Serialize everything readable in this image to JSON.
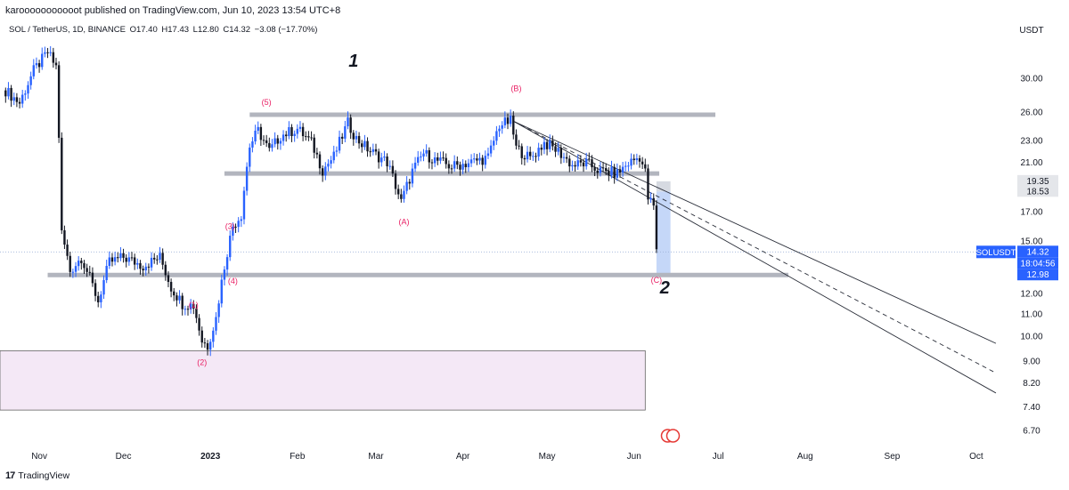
{
  "header": {
    "published": "karooooooooooot published on TradingView.com, Jun 10, 2023 13:54 UTC+8"
  },
  "legend": {
    "symbol": "SOL / TetherUS, 1D, BINANCE",
    "open": "O17.40",
    "high": "H17.43",
    "low": "L12.80",
    "close": "C14.32",
    "change": "−3.08 (−17.70%)"
  },
  "footer": {
    "brand": "TradingView"
  },
  "colors": {
    "up": "#2962ff",
    "down": "#131722",
    "level_line": "#b2b5be",
    "wave_label": "#e91e63",
    "support_zone": "#f3e5f5",
    "projection": "#bbd0f7",
    "price_badge": "#2962ff"
  },
  "chart_data": {
    "type": "candlestick",
    "symbol": "SOLUSDT",
    "exchange": "BINANCE",
    "interval": "1D",
    "y_axis": {
      "unit_label": "USDT",
      "scale": "log",
      "ticks": [
        "30.00",
        "26.00",
        "23.00",
        "21.00",
        "17.00",
        "15.00",
        "12.00",
        "11.00",
        "10.00",
        "9.00",
        "8.20",
        "7.40",
        "6.70"
      ],
      "range": [
        6.3,
        36
      ]
    },
    "x_axis": {
      "ticks": [
        "Nov",
        "Dec",
        "2023",
        "Feb",
        "Mar",
        "Apr",
        "May",
        "Jun",
        "Jul",
        "Aug",
        "Sep",
        "Oct"
      ],
      "range": [
        "2022-10-18",
        "2023-10-15"
      ]
    },
    "price_path": [
      [
        "2022-10-20",
        28.5
      ],
      [
        "2022-10-25",
        27.0
      ],
      [
        "2022-10-30",
        31.0
      ],
      [
        "2022-11-04",
        33.5
      ],
      [
        "2022-11-07",
        31.5
      ],
      [
        "2022-11-09",
        15.5
      ],
      [
        "2022-11-12",
        13.2
      ],
      [
        "2022-11-16",
        14.0
      ],
      [
        "2022-11-22",
        11.6
      ],
      [
        "2022-11-26",
        13.7
      ],
      [
        "2022-12-01",
        14.0
      ],
      [
        "2022-12-08",
        13.5
      ],
      [
        "2022-12-14",
        14.0
      ],
      [
        "2022-12-18",
        12.3
      ],
      [
        "2022-12-22",
        11.5
      ],
      [
        "2022-12-26",
        11.4
      ],
      [
        "2022-12-29",
        9.8
      ],
      [
        "2022-12-31",
        9.6
      ],
      [
        "2023-01-03",
        10.8
      ],
      [
        "2023-01-06",
        13.5
      ],
      [
        "2023-01-09",
        16.0
      ],
      [
        "2023-01-12",
        16.8
      ],
      [
        "2023-01-15",
        22.5
      ],
      [
        "2023-01-18",
        24.0
      ],
      [
        "2023-01-22",
        22.0
      ],
      [
        "2023-01-26",
        23.5
      ],
      [
        "2023-02-01",
        24.2
      ],
      [
        "2023-02-06",
        22.8
      ],
      [
        "2023-02-10",
        20.3
      ],
      [
        "2023-02-14",
        21.5
      ],
      [
        "2023-02-19",
        24.8
      ],
      [
        "2023-02-22",
        23.2
      ],
      [
        "2023-02-27",
        22.0
      ],
      [
        "2023-03-05",
        21.0
      ],
      [
        "2023-03-10",
        17.7
      ],
      [
        "2023-03-14",
        20.2
      ],
      [
        "2023-03-18",
        21.8
      ],
      [
        "2023-03-22",
        21.2
      ],
      [
        "2023-03-28",
        20.6
      ],
      [
        "2023-04-04",
        21.0
      ],
      [
        "2023-04-10",
        21.4
      ],
      [
        "2023-04-14",
        24.6
      ],
      [
        "2023-04-18",
        25.0
      ],
      [
        "2023-04-20",
        22.3
      ],
      [
        "2023-04-25",
        21.3
      ],
      [
        "2023-04-30",
        22.8
      ],
      [
        "2023-05-05",
        22.0
      ],
      [
        "2023-05-10",
        20.7
      ],
      [
        "2023-05-15",
        20.9
      ],
      [
        "2023-05-20",
        20.2
      ],
      [
        "2023-05-26",
        20.0
      ],
      [
        "2023-05-30",
        20.9
      ],
      [
        "2023-06-03",
        21.5
      ],
      [
        "2023-06-05",
        20.1
      ],
      [
        "2023-06-06",
        18.0
      ],
      [
        "2023-06-08",
        17.4
      ],
      [
        "2023-06-09",
        14.32
      ]
    ],
    "horizontal_levels": [
      {
        "price": 25.7,
        "from": "2023-01-15",
        "to": "2023-06-30"
      },
      {
        "price": 20.0,
        "from": "2023-01-06",
        "to": "2023-06-10"
      },
      {
        "price": 12.98,
        "from": "2022-11-04",
        "to": "2023-07-26"
      }
    ],
    "zones": [
      {
        "name": "support-zone",
        "price_top": 9.4,
        "price_bottom": 7.3,
        "from": "2022-10-18",
        "to": "2023-06-05"
      },
      {
        "name": "projection",
        "price_top": 18.53,
        "price_bottom": 12.98,
        "from": "2023-06-09",
        "to": "2023-06-14"
      },
      {
        "name": "projection-top",
        "price_top": 19.35,
        "price_bottom": 18.53,
        "from": "2023-06-09",
        "to": "2023-06-14"
      }
    ],
    "channel": {
      "lines": [
        {
          "style": "solid",
          "from": [
            "2023-04-19",
            25.0
          ],
          "to": [
            "2023-10-08",
            9.7
          ]
        },
        {
          "style": "solid",
          "from": [
            "2023-04-19",
            25.0
          ],
          "to": [
            "2023-10-08",
            7.85
          ]
        },
        {
          "style": "dashed",
          "from": [
            "2023-04-19",
            25.0
          ],
          "to": [
            "2023-10-08",
            8.55
          ]
        }
      ]
    },
    "wave_labels": [
      {
        "text": "(5)",
        "date": "2023-01-21",
        "price": 26.8
      },
      {
        "text": "(3)",
        "date": "2023-01-08",
        "price": 15.8
      },
      {
        "text": "(4)",
        "date": "2023-01-09",
        "price": 12.5
      },
      {
        "text": "(1)",
        "date": "2022-12-26",
        "price": 11.3
      },
      {
        "text": "(2)",
        "date": "2022-12-29",
        "price": 8.85
      },
      {
        "text": "(A)",
        "date": "2023-03-11",
        "price": 16.1
      },
      {
        "text": "(B)",
        "date": "2023-04-20",
        "price": 28.4
      },
      {
        "text": "(C)",
        "date": "2023-06-09",
        "price": 12.55
      }
    ],
    "annotations": [
      {
        "text": "1",
        "date": "2023-02-21",
        "price": 31.5
      },
      {
        "text": "2",
        "date": "2023-06-12",
        "price": 12.0
      }
    ],
    "price_badges": [
      {
        "text": "19.35",
        "price": 19.35,
        "style": "grey"
      },
      {
        "text": "18.53",
        "price": 18.53,
        "style": "grey"
      },
      {
        "text": "SOLUSDT",
        "price": 14.32,
        "style": "blue"
      },
      {
        "text": "14.32",
        "price": 14.32,
        "style": "blue"
      },
      {
        "text": "18:04:56",
        "price": 13.9,
        "style": "blue"
      },
      {
        "text": "12.98",
        "price": 12.98,
        "style": "blue"
      }
    ],
    "last_price": 14.32
  }
}
